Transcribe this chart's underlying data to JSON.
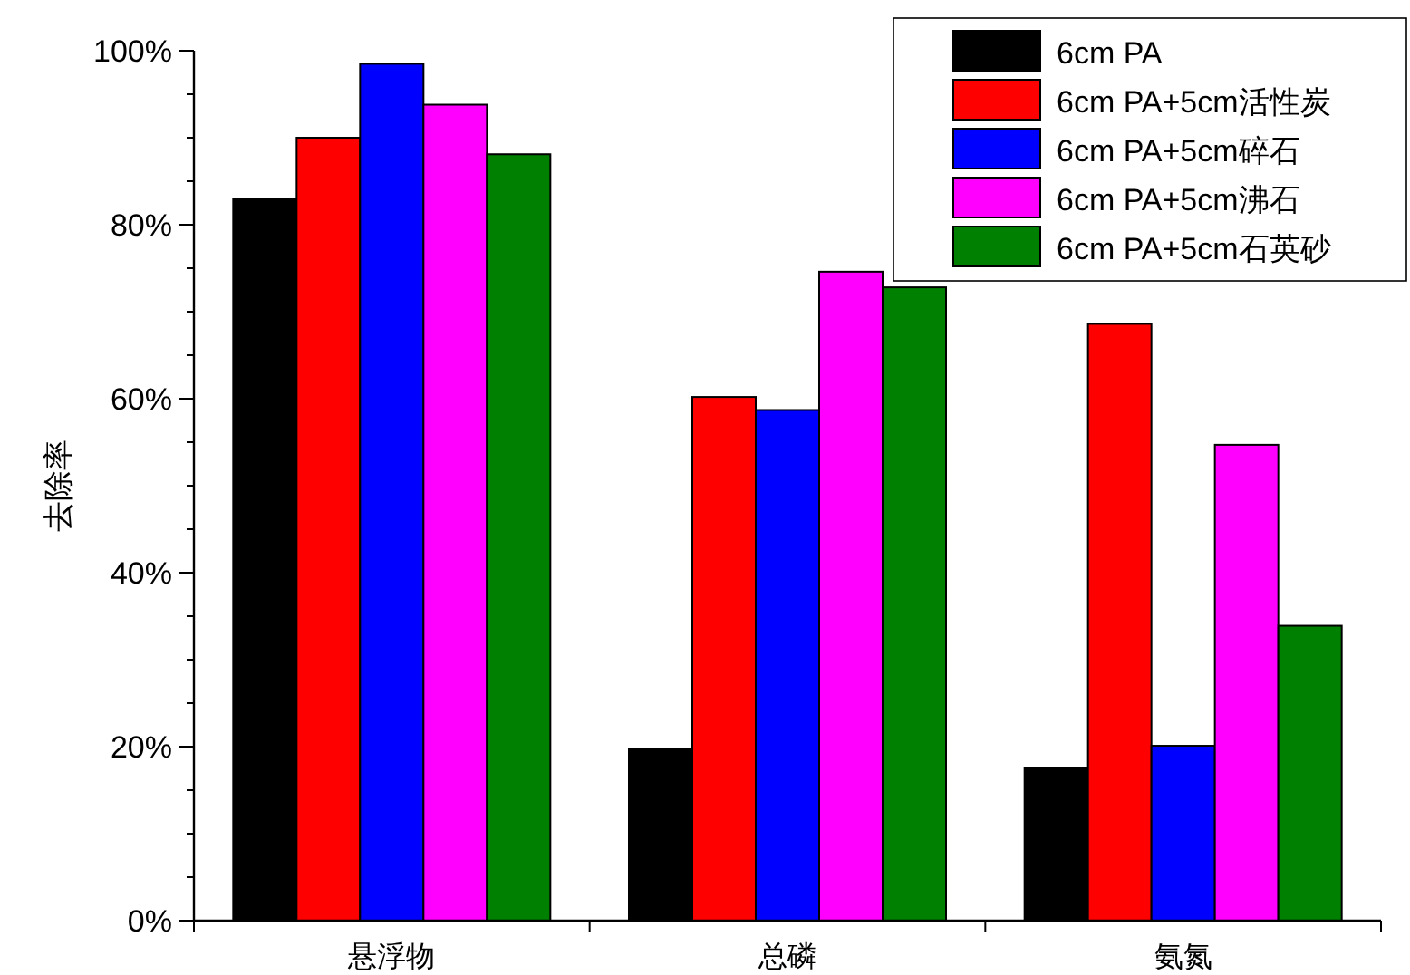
{
  "chart_data": {
    "type": "bar",
    "ylabel": "去除率",
    "categories": [
      "悬浮物",
      "总磷",
      "氨氮"
    ],
    "series": [
      {
        "name": "6cm PA",
        "color": "#000000",
        "values": [
          83.0,
          19.7,
          17.5
        ]
      },
      {
        "name": "6cm PA+5cm活性炭",
        "color": "#ff0000",
        "values": [
          90.0,
          60.2,
          68.6
        ]
      },
      {
        "name": "6cm PA+5cm碎石",
        "color": "#0000ff",
        "values": [
          98.5,
          58.7,
          20.1
        ]
      },
      {
        "name": "6cm PA+5cm沸石",
        "color": "#ff00ff",
        "values": [
          93.8,
          74.6,
          54.7
        ]
      },
      {
        "name": "6cm PA+5cm石英砂",
        "color": "#008000",
        "values": [
          88.1,
          72.8,
          33.9
        ]
      }
    ],
    "ylim": [
      0,
      100
    ],
    "yticks": [
      {
        "value": 0,
        "label": "0%"
      },
      {
        "value": 5,
        "label": null
      },
      {
        "value": 10,
        "label": null
      },
      {
        "value": 15,
        "label": null
      },
      {
        "value": 20,
        "label": "20%"
      },
      {
        "value": 25,
        "label": null
      },
      {
        "value": 30,
        "label": null
      },
      {
        "value": 35,
        "label": null
      },
      {
        "value": 40,
        "label": "40%"
      },
      {
        "value": 45,
        "label": null
      },
      {
        "value": 50,
        "label": null
      },
      {
        "value": 55,
        "label": null
      },
      {
        "value": 60,
        "label": "60%"
      },
      {
        "value": 65,
        "label": null
      },
      {
        "value": 70,
        "label": null
      },
      {
        "value": 75,
        "label": null
      },
      {
        "value": 80,
        "label": "80%"
      },
      {
        "value": 85,
        "label": null
      },
      {
        "value": 90,
        "label": null
      },
      {
        "value": 95,
        "label": null
      },
      {
        "value": 100,
        "label": "100%"
      }
    ],
    "legend": "top right",
    "grid": false
  }
}
